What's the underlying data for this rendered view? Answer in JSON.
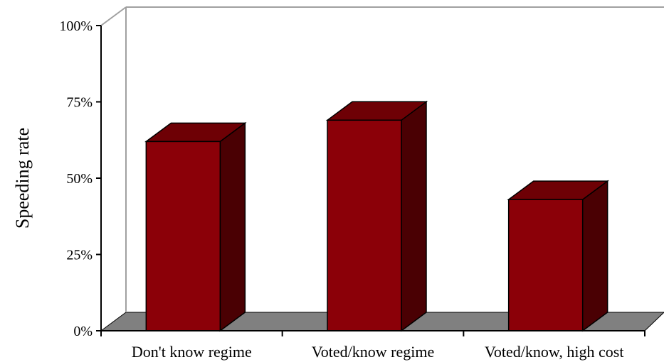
{
  "chart_data": {
    "type": "bar",
    "style": "3d-column",
    "title": "",
    "xlabel": "",
    "ylabel": "Speeding rate",
    "categories": [
      "Don't know regime",
      "Voted/know regime",
      "Voted/know, high cost"
    ],
    "values": [
      0.62,
      0.69,
      0.43
    ],
    "ylim": [
      0,
      1
    ],
    "yticks": [
      0,
      0.25,
      0.5,
      0.75,
      1.0
    ],
    "ytick_labels": [
      "0%",
      "25%",
      "50%",
      "75%",
      "100%"
    ],
    "grid": false,
    "legend": "none"
  },
  "colors": {
    "bar_front": "#8b0008",
    "bar_top": "#6e0005",
    "bar_side": "#4a0003",
    "floor": "#808080",
    "walls": "#a0a0a0"
  }
}
